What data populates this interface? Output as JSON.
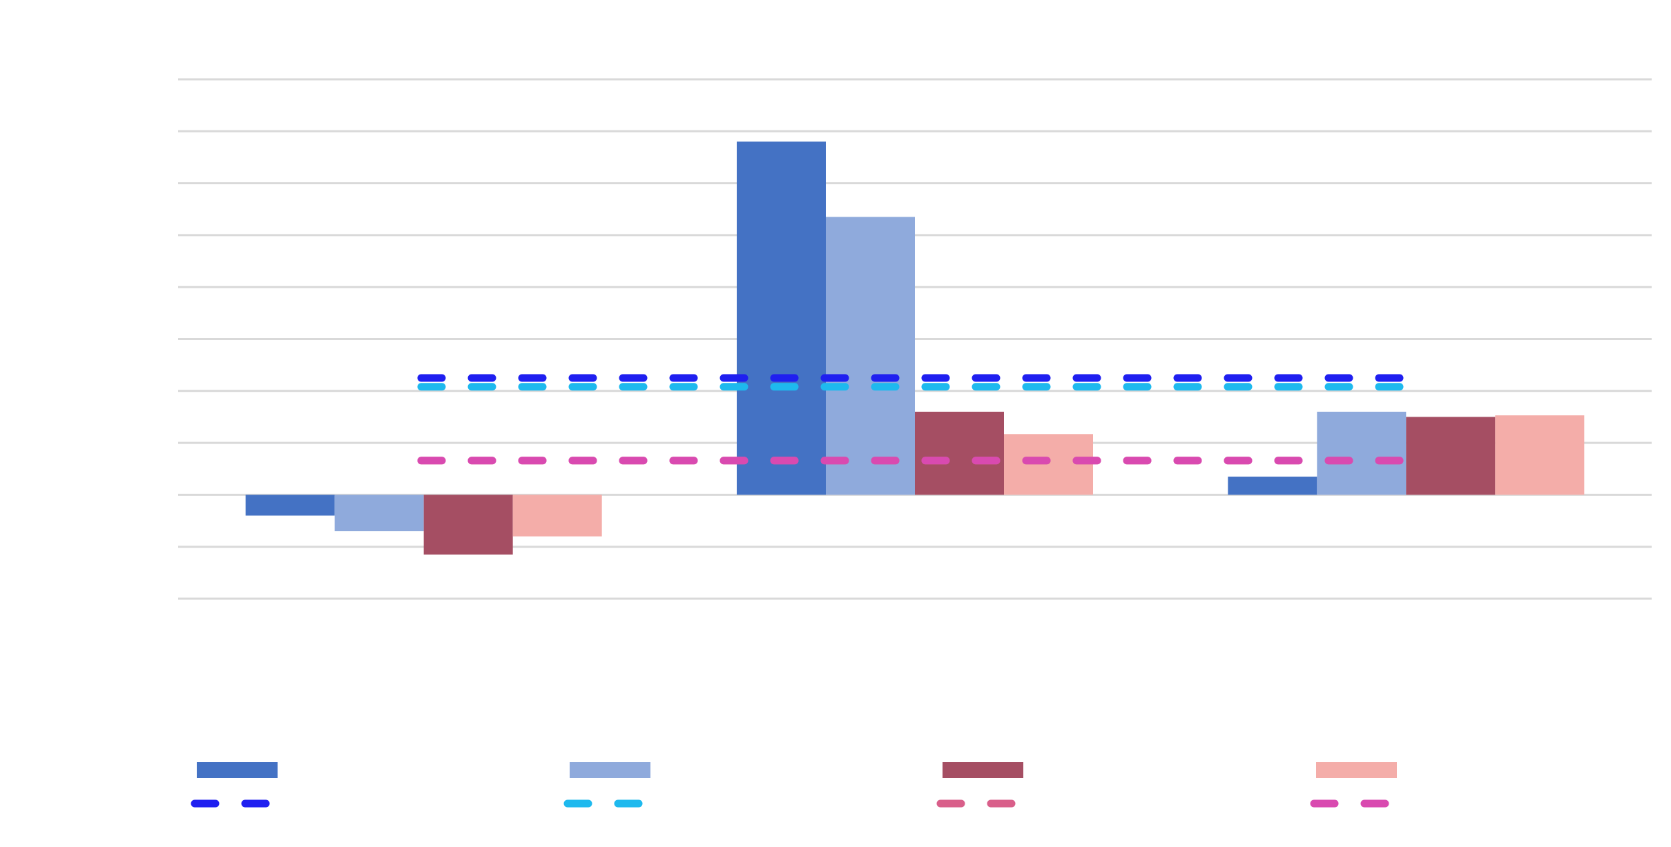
{
  "chart_data": {
    "type": "bar",
    "categories": [
      "",
      "",
      ""
    ],
    "series": [
      {
        "values": [
          -0.4,
          6.8,
          0.35
        ],
        "color": "#4472C4"
      },
      {
        "values": [
          -0.7,
          5.35,
          1.6
        ],
        "color": "#8FAADC"
      },
      {
        "values": [
          -1.15,
          1.6,
          1.5
        ],
        "color": "#A54E63"
      },
      {
        "values": [
          -0.8,
          1.17,
          1.53
        ],
        "color": "#F4ADA9"
      }
    ],
    "reference_lines": [
      {
        "value": 2.25,
        "color": "#1F1FF0",
        "style": "dashed"
      },
      {
        "value": 2.08,
        "color": "#1EB9EE",
        "style": "dashed"
      },
      {
        "value": 0.66,
        "color": "#D95F8A",
        "style": "dashed"
      },
      {
        "value": 0.66,
        "color": "#D94AB0",
        "style": "dashed"
      }
    ],
    "ylim": [
      -2,
      8
    ],
    "grid": true,
    "legend_position": "bottom",
    "title": "",
    "xlabel": "",
    "ylabel": ""
  }
}
